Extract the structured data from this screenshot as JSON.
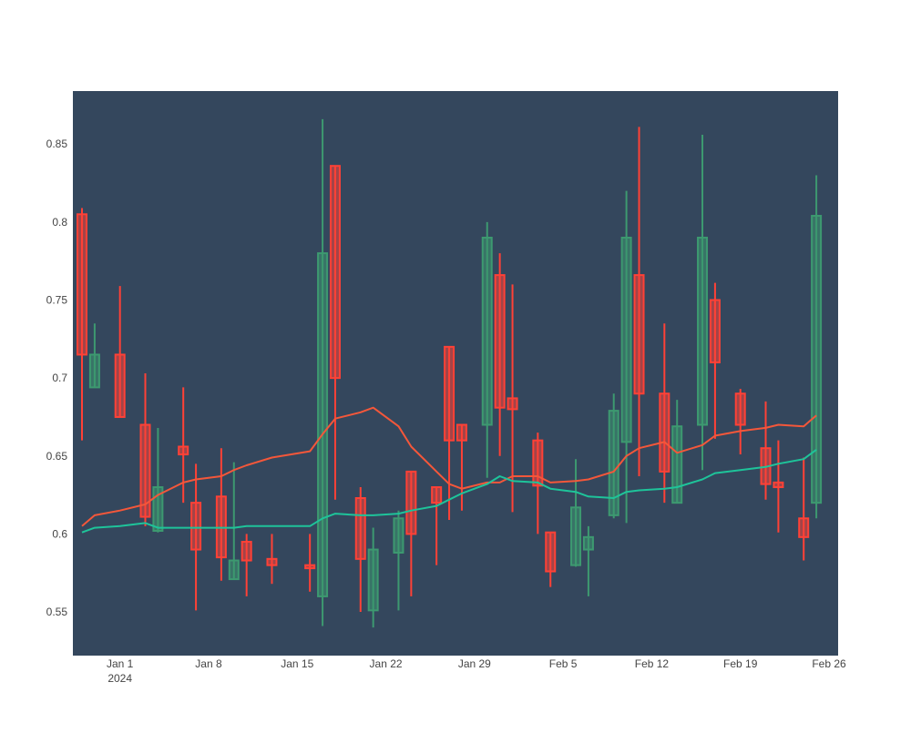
{
  "chart_data": {
    "type": "candlestick",
    "title": "",
    "xlabel": "",
    "ylabel": "",
    "ylim": [
      0.522,
      0.884
    ],
    "xlim": [
      "2023-12-29",
      "2024-02-26"
    ],
    "grid": false,
    "legend": "none",
    "colors": {
      "plot_bg": "#34475d",
      "increasing": "#3d9970",
      "decreasing": "#ff4136",
      "line_short": "#f4573a",
      "line_long": "#1ec49a"
    },
    "y_ticks": [
      {
        "value": 0.55,
        "label": "0.55"
      },
      {
        "value": 0.6,
        "label": "0.6"
      },
      {
        "value": 0.65,
        "label": "0.65"
      },
      {
        "value": 0.7,
        "label": "0.7"
      },
      {
        "value": 0.75,
        "label": "0.75"
      },
      {
        "value": 0.8,
        "label": "0.8"
      },
      {
        "value": 0.85,
        "label": "0.85"
      }
    ],
    "x_ticks": [
      {
        "date": "2024-01-01",
        "label": "Jan 1",
        "sublabel": "2024"
      },
      {
        "date": "2024-01-08",
        "label": "Jan 8"
      },
      {
        "date": "2024-01-15",
        "label": "Jan 15"
      },
      {
        "date": "2024-01-22",
        "label": "Jan 22"
      },
      {
        "date": "2024-01-29",
        "label": "Jan 29"
      },
      {
        "date": "2024-02-05",
        "label": "Feb 5"
      },
      {
        "date": "2024-02-12",
        "label": "Feb 12"
      },
      {
        "date": "2024-02-19",
        "label": "Feb 19"
      },
      {
        "date": "2024-02-26",
        "label": "Feb 26"
      }
    ],
    "candles": [
      {
        "date": "2023-12-29",
        "open": 0.805,
        "high": 0.809,
        "low": 0.66,
        "close": 0.715
      },
      {
        "date": "2023-12-30",
        "open": 0.694,
        "high": 0.735,
        "low": 0.694,
        "close": 0.715
      },
      {
        "date": "2024-01-01",
        "open": 0.715,
        "high": 0.759,
        "low": 0.675,
        "close": 0.675
      },
      {
        "date": "2024-01-03",
        "open": 0.67,
        "high": 0.703,
        "low": 0.605,
        "close": 0.611
      },
      {
        "date": "2024-01-04",
        "open": 0.602,
        "high": 0.668,
        "low": 0.601,
        "close": 0.63
      },
      {
        "date": "2024-01-06",
        "open": 0.656,
        "high": 0.694,
        "low": 0.62,
        "close": 0.651
      },
      {
        "date": "2024-01-07",
        "open": 0.62,
        "high": 0.645,
        "low": 0.551,
        "close": 0.59
      },
      {
        "date": "2024-01-09",
        "open": 0.624,
        "high": 0.655,
        "low": 0.57,
        "close": 0.585
      },
      {
        "date": "2024-01-10",
        "open": 0.571,
        "high": 0.646,
        "low": 0.571,
        "close": 0.583
      },
      {
        "date": "2024-01-11",
        "open": 0.595,
        "high": 0.6,
        "low": 0.56,
        "close": 0.583
      },
      {
        "date": "2024-01-13",
        "open": 0.584,
        "high": 0.6,
        "low": 0.568,
        "close": 0.58
      },
      {
        "date": "2024-01-16",
        "open": 0.58,
        "high": 0.6,
        "low": 0.563,
        "close": 0.578
      },
      {
        "date": "2024-01-17",
        "open": 0.56,
        "high": 0.866,
        "low": 0.541,
        "close": 0.78
      },
      {
        "date": "2024-01-18",
        "open": 0.836,
        "high": 0.836,
        "low": 0.622,
        "close": 0.7
      },
      {
        "date": "2024-01-20",
        "open": 0.623,
        "high": 0.63,
        "low": 0.55,
        "close": 0.584
      },
      {
        "date": "2024-01-21",
        "open": 0.551,
        "high": 0.604,
        "low": 0.54,
        "close": 0.59
      },
      {
        "date": "2024-01-23",
        "open": 0.588,
        "high": 0.615,
        "low": 0.551,
        "close": 0.61
      },
      {
        "date": "2024-01-24",
        "open": 0.64,
        "high": 0.64,
        "low": 0.56,
        "close": 0.6
      },
      {
        "date": "2024-01-26",
        "open": 0.63,
        "high": 0.63,
        "low": 0.58,
        "close": 0.62
      },
      {
        "date": "2024-01-27",
        "open": 0.72,
        "high": 0.72,
        "low": 0.609,
        "close": 0.66
      },
      {
        "date": "2024-01-28",
        "open": 0.67,
        "high": 0.67,
        "low": 0.615,
        "close": 0.66
      },
      {
        "date": "2024-01-30",
        "open": 0.67,
        "high": 0.8,
        "low": 0.636,
        "close": 0.79
      },
      {
        "date": "2024-01-31",
        "open": 0.766,
        "high": 0.78,
        "low": 0.65,
        "close": 0.681
      },
      {
        "date": "2024-02-01",
        "open": 0.687,
        "high": 0.76,
        "low": 0.614,
        "close": 0.68
      },
      {
        "date": "2024-02-03",
        "open": 0.66,
        "high": 0.665,
        "low": 0.6,
        "close": 0.631
      },
      {
        "date": "2024-02-04",
        "open": 0.601,
        "high": 0.601,
        "low": 0.566,
        "close": 0.576
      },
      {
        "date": "2024-02-06",
        "open": 0.58,
        "high": 0.648,
        "low": 0.579,
        "close": 0.617
      },
      {
        "date": "2024-02-07",
        "open": 0.59,
        "high": 0.605,
        "low": 0.56,
        "close": 0.598
      },
      {
        "date": "2024-02-09",
        "open": 0.612,
        "high": 0.69,
        "low": 0.61,
        "close": 0.679
      },
      {
        "date": "2024-02-10",
        "open": 0.659,
        "high": 0.82,
        "low": 0.607,
        "close": 0.79
      },
      {
        "date": "2024-02-11",
        "open": 0.766,
        "high": 0.861,
        "low": 0.637,
        "close": 0.69
      },
      {
        "date": "2024-02-13",
        "open": 0.69,
        "high": 0.735,
        "low": 0.62,
        "close": 0.64
      },
      {
        "date": "2024-02-14",
        "open": 0.62,
        "high": 0.686,
        "low": 0.62,
        "close": 0.669
      },
      {
        "date": "2024-02-16",
        "open": 0.67,
        "high": 0.856,
        "low": 0.641,
        "close": 0.79
      },
      {
        "date": "2024-02-17",
        "open": 0.75,
        "high": 0.761,
        "low": 0.661,
        "close": 0.71
      },
      {
        "date": "2024-02-19",
        "open": 0.69,
        "high": 0.693,
        "low": 0.651,
        "close": 0.67
      },
      {
        "date": "2024-02-21",
        "open": 0.655,
        "high": 0.685,
        "low": 0.622,
        "close": 0.632
      },
      {
        "date": "2024-02-22",
        "open": 0.633,
        "high": 0.66,
        "low": 0.601,
        "close": 0.63
      },
      {
        "date": "2024-02-24",
        "open": 0.61,
        "high": 0.649,
        "low": 0.583,
        "close": 0.598
      },
      {
        "date": "2024-02-25",
        "open": 0.62,
        "high": 0.83,
        "low": 0.61,
        "close": 0.804
      }
    ],
    "lines": [
      {
        "color": "#f4573a",
        "points": [
          [
            "2023-12-29",
            0.605
          ],
          [
            "2023-12-30",
            0.612
          ],
          [
            "2024-01-01",
            0.615
          ],
          [
            "2024-01-03",
            0.619
          ],
          [
            "2024-01-04",
            0.625
          ],
          [
            "2024-01-06",
            0.633
          ],
          [
            "2024-01-07",
            0.635
          ],
          [
            "2024-01-09",
            0.637
          ],
          [
            "2024-01-10",
            0.641
          ],
          [
            "2024-01-11",
            0.644
          ],
          [
            "2024-01-13",
            0.649
          ],
          [
            "2024-01-16",
            0.653
          ],
          [
            "2024-01-17",
            0.664
          ],
          [
            "2024-01-18",
            0.674
          ],
          [
            "2024-01-20",
            0.678
          ],
          [
            "2024-01-21",
            0.681
          ],
          [
            "2024-01-23",
            0.669
          ],
          [
            "2024-01-24",
            0.656
          ],
          [
            "2024-01-26",
            0.64
          ],
          [
            "2024-01-27",
            0.632
          ],
          [
            "2024-01-28",
            0.629
          ],
          [
            "2024-01-30",
            0.633
          ],
          [
            "2024-01-31",
            0.633
          ],
          [
            "2024-02-01",
            0.637
          ],
          [
            "2024-02-03",
            0.637
          ],
          [
            "2024-02-04",
            0.633
          ],
          [
            "2024-02-06",
            0.634
          ],
          [
            "2024-02-07",
            0.635
          ],
          [
            "2024-02-09",
            0.64
          ],
          [
            "2024-02-10",
            0.65
          ],
          [
            "2024-02-11",
            0.655
          ],
          [
            "2024-02-13",
            0.659
          ],
          [
            "2024-02-14",
            0.652
          ],
          [
            "2024-02-16",
            0.657
          ],
          [
            "2024-02-17",
            0.663
          ],
          [
            "2024-02-19",
            0.666
          ],
          [
            "2024-02-21",
            0.668
          ],
          [
            "2024-02-22",
            0.67
          ],
          [
            "2024-02-24",
            0.669
          ],
          [
            "2024-02-25",
            0.676
          ]
        ]
      },
      {
        "color": "#1ec49a",
        "points": [
          [
            "2023-12-29",
            0.601
          ],
          [
            "2023-12-30",
            0.604
          ],
          [
            "2024-01-01",
            0.605
          ],
          [
            "2024-01-03",
            0.607
          ],
          [
            "2024-01-04",
            0.604
          ],
          [
            "2024-01-06",
            0.604
          ],
          [
            "2024-01-07",
            0.604
          ],
          [
            "2024-01-09",
            0.604
          ],
          [
            "2024-01-10",
            0.604
          ],
          [
            "2024-01-11",
            0.605
          ],
          [
            "2024-01-13",
            0.605
          ],
          [
            "2024-01-16",
            0.605
          ],
          [
            "2024-01-17",
            0.61
          ],
          [
            "2024-01-18",
            0.613
          ],
          [
            "2024-01-20",
            0.612
          ],
          [
            "2024-01-21",
            0.612
          ],
          [
            "2024-01-23",
            0.613
          ],
          [
            "2024-01-24",
            0.615
          ],
          [
            "2024-01-26",
            0.618
          ],
          [
            "2024-01-27",
            0.622
          ],
          [
            "2024-01-28",
            0.626
          ],
          [
            "2024-01-30",
            0.632
          ],
          [
            "2024-01-31",
            0.637
          ],
          [
            "2024-02-01",
            0.634
          ],
          [
            "2024-02-03",
            0.633
          ],
          [
            "2024-02-04",
            0.629
          ],
          [
            "2024-02-06",
            0.627
          ],
          [
            "2024-02-07",
            0.624
          ],
          [
            "2024-02-09",
            0.623
          ],
          [
            "2024-02-10",
            0.627
          ],
          [
            "2024-02-11",
            0.628
          ],
          [
            "2024-02-13",
            0.629
          ],
          [
            "2024-02-14",
            0.63
          ],
          [
            "2024-02-16",
            0.635
          ],
          [
            "2024-02-17",
            0.639
          ],
          [
            "2024-02-19",
            0.641
          ],
          [
            "2024-02-21",
            0.643
          ],
          [
            "2024-02-22",
            0.645
          ],
          [
            "2024-02-24",
            0.648
          ],
          [
            "2024-02-25",
            0.654
          ]
        ]
      }
    ]
  }
}
